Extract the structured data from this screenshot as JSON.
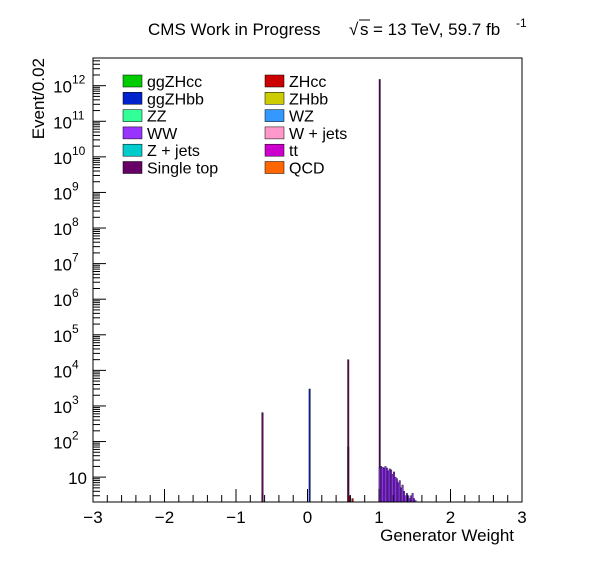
{
  "header": {
    "experiment": "CMS Work in Progress",
    "sqrt_s": "s",
    "energy_lumi": "= 13 TeV, 59.7 fb",
    "lumi_exponent": "-1"
  },
  "chart_data": {
    "type": "bar",
    "xlabel": "Generator Weight",
    "ylabel": "Event/0.02",
    "xlim": [
      -3,
      3
    ],
    "ylim": [
      2,
      6000000000000.0
    ],
    "ylog": true,
    "bin_width": 0.02,
    "x_ticks": [
      {
        "v": -3,
        "label": "−3"
      },
      {
        "v": -2,
        "label": "−2"
      },
      {
        "v": -1,
        "label": "−1"
      },
      {
        "v": 0,
        "label": "0"
      },
      {
        "v": 1,
        "label": "1"
      },
      {
        "v": 2,
        "label": "2"
      },
      {
        "v": 3,
        "label": "3"
      }
    ],
    "y_ticks": [
      {
        "v": 10,
        "base": "10",
        "exp": ""
      },
      {
        "v": 100,
        "base": "10",
        "exp": "2"
      },
      {
        "v": 1000,
        "base": "10",
        "exp": "3"
      },
      {
        "v": 10000,
        "base": "10",
        "exp": "4"
      },
      {
        "v": 100000,
        "base": "10",
        "exp": "5"
      },
      {
        "v": 1000000,
        "base": "10",
        "exp": "6"
      },
      {
        "v": 10000000,
        "base": "10",
        "exp": "7"
      },
      {
        "v": 100000000,
        "base": "10",
        "exp": "8"
      },
      {
        "v": 1000000000,
        "base": "10",
        "exp": "9"
      },
      {
        "v": 10000000000,
        "base": "10",
        "exp": "10"
      },
      {
        "v": 100000000000,
        "base": "10",
        "exp": "11"
      },
      {
        "v": 1000000000000,
        "base": "10",
        "exp": "12"
      }
    ],
    "legend": {
      "placement": "top-left",
      "entries": [
        {
          "name": "ggZHcc",
          "color": "#00cc00"
        },
        {
          "name": "ZHcc",
          "color": "#cc0000"
        },
        {
          "name": "ggZHbb",
          "color": "#0022cc"
        },
        {
          "name": "ZHbb",
          "color": "#cccc00"
        },
        {
          "name": "ZZ",
          "color": "#33ff99"
        },
        {
          "name": "WZ",
          "color": "#3399ff"
        },
        {
          "name": "WW",
          "color": "#9933ff"
        },
        {
          "name": "W + jets",
          "color": "#ff99cc"
        },
        {
          "name": "Z + jets",
          "color": "#00cccc"
        },
        {
          "name": "tt",
          "color": "#cc00cc"
        },
        {
          "name": "Single top",
          "color": "#660066"
        },
        {
          "name": "QCD",
          "color": "#ff6600"
        }
      ]
    },
    "series": [
      {
        "name": "ZHcc",
        "color": "#cc0000",
        "bins": [
          [
            -0.64,
            3.5
          ],
          [
            0.56,
            70
          ],
          [
            0.58,
            3
          ],
          [
            0.62,
            2.5
          ]
        ]
      },
      {
        "name": "ggZHbb",
        "color": "#0022cc",
        "bins": [
          [
            0.02,
            3000
          ]
        ]
      },
      {
        "name": "Single top",
        "color": "#660066",
        "bins": [
          [
            -0.64,
            650
          ],
          [
            0.56,
            20000
          ],
          [
            1.0,
            1500000000000.0
          ]
        ]
      },
      {
        "name": "WW",
        "color": "#9933ff",
        "bins": [
          [
            1.0,
            18
          ],
          [
            1.02,
            20
          ],
          [
            1.04,
            19
          ],
          [
            1.06,
            18
          ],
          [
            1.08,
            20
          ],
          [
            1.1,
            18
          ],
          [
            1.12,
            15
          ],
          [
            1.14,
            17
          ],
          [
            1.16,
            16
          ],
          [
            1.18,
            12
          ],
          [
            1.2,
            14
          ],
          [
            1.22,
            10
          ],
          [
            1.24,
            9
          ],
          [
            1.26,
            7
          ],
          [
            1.28,
            8
          ],
          [
            1.3,
            5
          ],
          [
            1.32,
            6
          ],
          [
            1.34,
            4
          ],
          [
            1.36,
            3
          ],
          [
            1.38,
            3.5
          ],
          [
            1.4,
            3
          ],
          [
            1.42,
            2.5
          ],
          [
            1.44,
            3
          ],
          [
            1.46,
            3.5
          ],
          [
            1.48,
            2.5
          ],
          [
            1.5,
            2.2
          ]
        ]
      }
    ]
  }
}
